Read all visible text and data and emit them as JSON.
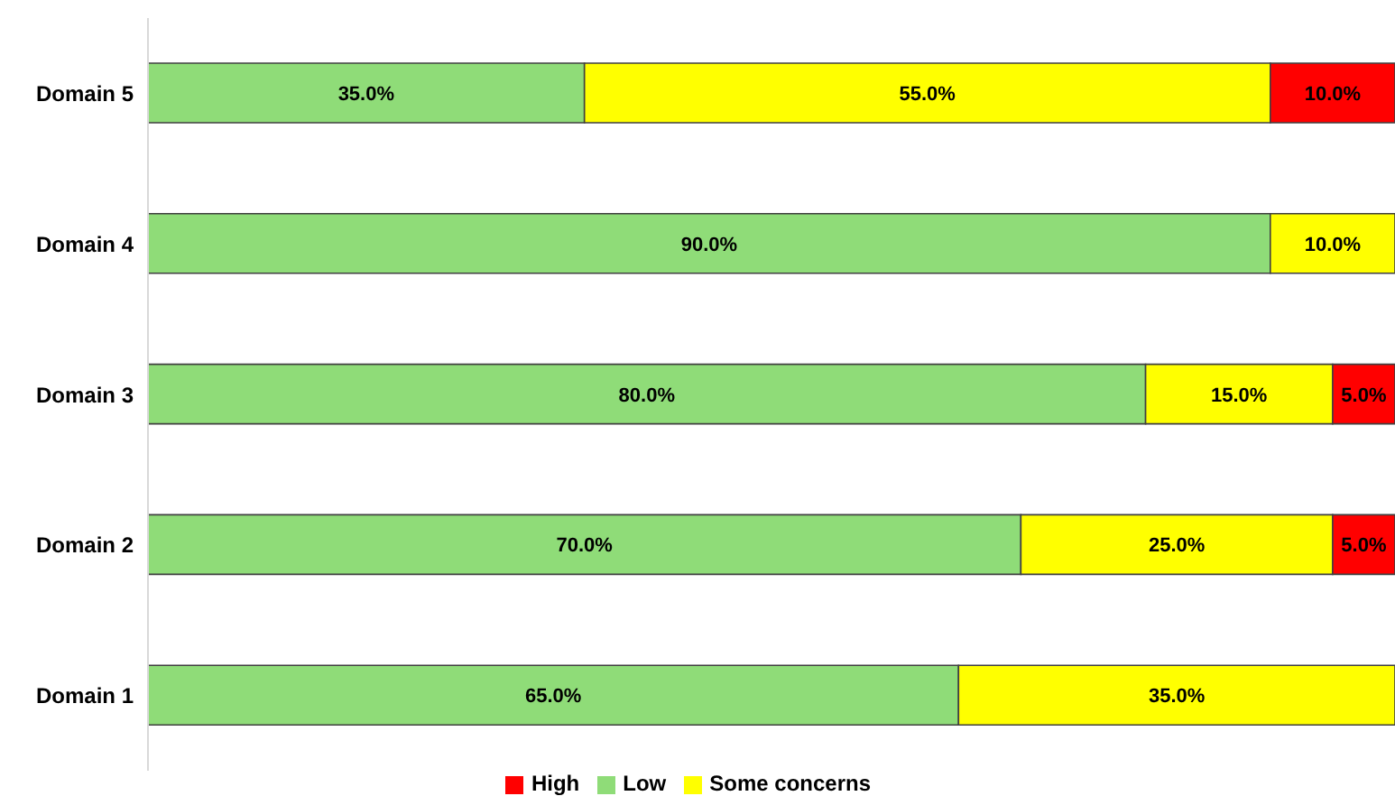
{
  "chart_data": {
    "type": "bar",
    "orientation": "horizontal",
    "stacked": true,
    "categories": [
      "Domain 5",
      "Domain 4",
      "Domain 3",
      "Domain 2",
      "Domain 1"
    ],
    "xlim": [
      0,
      100
    ],
    "legend": "bottom",
    "grid": false,
    "series": [
      {
        "name": "Low",
        "color": "#8fdc78",
        "values": [
          35,
          90,
          80,
          70,
          65
        ],
        "value_labels": [
          "35.0%",
          "90.0%",
          "80.0%",
          "70.0%",
          "65.0%"
        ]
      },
      {
        "name": "Some concerns",
        "color": "#ffff00",
        "values": [
          55,
          10,
          15,
          25,
          35
        ],
        "value_labels": [
          "55.0%",
          "10.0%",
          "15.0%",
          "25.0%",
          "35.0%"
        ]
      },
      {
        "name": "High",
        "color": "#ff0000",
        "values": [
          10,
          0,
          5,
          5,
          0
        ],
        "value_labels": [
          "10.0%",
          null,
          "5.0%",
          "5.0%",
          null
        ]
      }
    ]
  }
}
